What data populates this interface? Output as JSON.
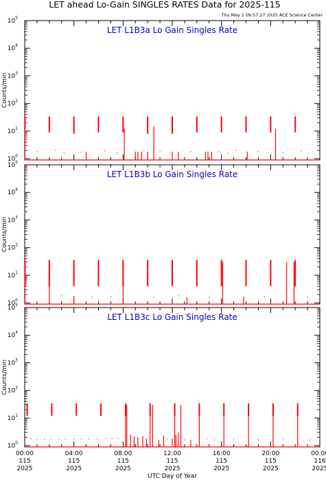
{
  "header": {
    "title": "LET ahead Lo-Gain SINGLES RATES Data for 2025-115",
    "timestamp": "Thu May  1 09:57:27 2025 ACE Science Center"
  },
  "colors": {
    "data": "#ff0000",
    "panel_title": "#0000cc",
    "axis": "#000000",
    "background": "#ffffff"
  },
  "chart_data": [
    {
      "type": "line",
      "title": "LET L1B3a Lo Gain Singles Rate",
      "ylabel": "Counts/min",
      "xlabel": "",
      "yscale": "log",
      "ylim": [
        0.9,
        100000
      ],
      "y_ticks": [
        1,
        10,
        100,
        1000,
        10000,
        100000
      ],
      "xlim": [
        0,
        24
      ],
      "x_unit": "hour of day 2025-115 (UTC)",
      "grid": false,
      "series": [
        {
          "baseline": 0.9,
          "pulses": [
            {
              "x": 0.02,
              "y_top": 34,
              "y_bot": 12
            },
            {
              "x": 2.0,
              "y_top": 34,
              "y_bot": 9
            },
            {
              "x": 4.0,
              "y_top": 34,
              "y_bot": 8
            },
            {
              "x": 6.0,
              "y_top": 34,
              "y_bot": 9
            },
            {
              "x": 8.0,
              "y_top": 34,
              "y_bot": 9
            },
            {
              "x": 10.0,
              "y_top": 34,
              "y_bot": 8
            },
            {
              "x": 12.0,
              "y_top": 34,
              "y_bot": 8
            },
            {
              "x": 14.0,
              "y_top": 34,
              "y_bot": 9
            },
            {
              "x": 16.0,
              "y_top": 34,
              "y_bot": 9
            },
            {
              "x": 18.0,
              "y_top": 34,
              "y_bot": 9
            },
            {
              "x": 20.0,
              "y_top": 34,
              "y_bot": 9
            },
            {
              "x": 22.0,
              "y_top": 34,
              "y_bot": 9
            }
          ],
          "spikes": [
            {
              "x": 0.02,
              "y": 30
            },
            {
              "x": 5.0,
              "y": 1.8
            },
            {
              "x": 8.1,
              "y": 12
            },
            {
              "x": 9.0,
              "y": 1.8
            },
            {
              "x": 9.2,
              "y": 1.8
            },
            {
              "x": 9.5,
              "y": 1.8
            },
            {
              "x": 10.0,
              "y": 1.8
            },
            {
              "x": 10.5,
              "y": 15
            },
            {
              "x": 12.0,
              "y": 1.8
            },
            {
              "x": 12.5,
              "y": 1.8
            },
            {
              "x": 14.7,
              "y": 1.8
            },
            {
              "x": 14.9,
              "y": 1.8
            },
            {
              "x": 15.2,
              "y": 1.8
            },
            {
              "x": 18.1,
              "y": 1.8
            },
            {
              "x": 20.4,
              "y": 12
            }
          ],
          "dots": [
            {
              "x": 1.0,
              "y": 1.8
            },
            {
              "x": 2.5,
              "y": 2.0
            },
            {
              "x": 3.2,
              "y": 1.6
            },
            {
              "x": 4.5,
              "y": 1.7
            },
            {
              "x": 6.5,
              "y": 1.9
            },
            {
              "x": 7.5,
              "y": 1.6
            },
            {
              "x": 9.7,
              "y": 2.0
            },
            {
              "x": 11.0,
              "y": 1.8
            },
            {
              "x": 11.8,
              "y": 1.6
            },
            {
              "x": 13.5,
              "y": 1.8
            },
            {
              "x": 15.8,
              "y": 1.8
            },
            {
              "x": 16.5,
              "y": 1.6
            },
            {
              "x": 17.2,
              "y": 2.0
            },
            {
              "x": 19.0,
              "y": 1.8
            },
            {
              "x": 21.0,
              "y": 1.7
            },
            {
              "x": 22.5,
              "y": 1.9
            }
          ]
        }
      ]
    },
    {
      "type": "line",
      "title": "LET L1B3b Lo Gain Singles Rate",
      "ylabel": "Counts/min",
      "xlabel": "",
      "yscale": "log",
      "ylim": [
        0.9,
        100000
      ],
      "y_ticks": [
        1,
        10,
        100,
        1000,
        10000,
        100000
      ],
      "xlim": [
        0,
        24
      ],
      "x_unit": "hour of day 2025-115 (UTC)",
      "grid": false,
      "series": [
        {
          "baseline": 0.9,
          "pulses": [
            {
              "x": 0.02,
              "y_top": 36,
              "y_bot": 4
            },
            {
              "x": 2.0,
              "y_top": 36,
              "y_bot": 4
            },
            {
              "x": 4.0,
              "y_top": 36,
              "y_bot": 4
            },
            {
              "x": 6.0,
              "y_top": 36,
              "y_bot": 4
            },
            {
              "x": 8.0,
              "y_top": 36,
              "y_bot": 4
            },
            {
              "x": 10.0,
              "y_top": 36,
              "y_bot": 4
            },
            {
              "x": 12.0,
              "y_top": 36,
              "y_bot": 4
            },
            {
              "x": 14.0,
              "y_top": 36,
              "y_bot": 4
            },
            {
              "x": 16.0,
              "y_top": 36,
              "y_bot": 4
            },
            {
              "x": 18.0,
              "y_top": 36,
              "y_bot": 4
            },
            {
              "x": 20.0,
              "y_top": 36,
              "y_bot": 4
            },
            {
              "x": 22.0,
              "y_top": 36,
              "y_bot": 4
            }
          ],
          "spikes": [
            {
              "x": 0.02,
              "y": 30
            },
            {
              "x": 2.0,
              "y": 30
            },
            {
              "x": 4.0,
              "y": 1.8
            },
            {
              "x": 8.0,
              "y": 30
            },
            {
              "x": 13.2,
              "y": 1.6
            },
            {
              "x": 16.1,
              "y": 30
            },
            {
              "x": 17.8,
              "y": 1.7
            },
            {
              "x": 21.3,
              "y": 30
            },
            {
              "x": 21.9,
              "y": 30
            }
          ],
          "dots": [
            {
              "x": 3.0,
              "y": 1.8
            },
            {
              "x": 5.5,
              "y": 1.6
            },
            {
              "x": 7.0,
              "y": 1.7
            },
            {
              "x": 10.5,
              "y": 1.6
            },
            {
              "x": 12.5,
              "y": 1.8
            },
            {
              "x": 15.0,
              "y": 1.6
            },
            {
              "x": 19.5,
              "y": 1.7
            },
            {
              "x": 23.0,
              "y": 1.6
            }
          ]
        }
      ]
    },
    {
      "type": "line",
      "title": "LET L1B3c Lo Gain Singles Rate",
      "ylabel": "Counts/min",
      "xlabel": "UTC Day of Year",
      "yscale": "log",
      "ylim": [
        0.9,
        100000
      ],
      "y_ticks": [
        1,
        10,
        100,
        1000,
        10000,
        100000
      ],
      "xlim": [
        0,
        24
      ],
      "x_unit": "hour of day 2025-115 (UTC)",
      "grid": false,
      "x_ticks": [
        {
          "x": 0,
          "label": [
            "00:00",
            "115",
            "2025"
          ]
        },
        {
          "x": 4,
          "label": [
            "04:00",
            "115",
            "2025"
          ]
        },
        {
          "x": 8,
          "label": [
            "08:00",
            "115",
            "2025"
          ]
        },
        {
          "x": 12,
          "label": [
            "12:00",
            "115",
            "2025"
          ]
        },
        {
          "x": 16,
          "label": [
            "16:00",
            "115",
            "2025"
          ]
        },
        {
          "x": 20,
          "label": [
            "20:00",
            "115",
            "2025"
          ]
        },
        {
          "x": 24,
          "label": [
            "00:00",
            "116",
            "2025"
          ]
        }
      ],
      "series": [
        {
          "baseline": 0.9,
          "pulses": [
            {
              "x": 0.2,
              "y_top": 34,
              "y_bot": 12
            },
            {
              "x": 2.2,
              "y_top": 34,
              "y_bot": 12
            },
            {
              "x": 4.2,
              "y_top": 34,
              "y_bot": 12
            },
            {
              "x": 6.2,
              "y_top": 34,
              "y_bot": 12
            },
            {
              "x": 8.2,
              "y_top": 34,
              "y_bot": 12
            },
            {
              "x": 10.2,
              "y_top": 34,
              "y_bot": 12
            },
            {
              "x": 12.2,
              "y_top": 34,
              "y_bot": 12
            },
            {
              "x": 14.2,
              "y_top": 34,
              "y_bot": 12
            },
            {
              "x": 16.2,
              "y_top": 34,
              "y_bot": 12
            },
            {
              "x": 18.2,
              "y_top": 34,
              "y_bot": 12
            },
            {
              "x": 20.2,
              "y_top": 34,
              "y_bot": 12
            },
            {
              "x": 22.2,
              "y_top": 34,
              "y_bot": 12
            }
          ],
          "spikes": [
            {
              "x": 8.2,
              "y": 30
            },
            {
              "x": 8.3,
              "y": 30
            },
            {
              "x": 8.6,
              "y": 2.5
            },
            {
              "x": 8.9,
              "y": 2.2
            },
            {
              "x": 9.2,
              "y": 2.0
            },
            {
              "x": 9.6,
              "y": 2.2
            },
            {
              "x": 9.9,
              "y": 1.8
            },
            {
              "x": 10.4,
              "y": 30
            },
            {
              "x": 10.9,
              "y": 1.6
            },
            {
              "x": 11.3,
              "y": 2.3
            },
            {
              "x": 12.0,
              "y": 1.8
            },
            {
              "x": 12.3,
              "y": 2.4
            },
            {
              "x": 12.5,
              "y": 3.0
            },
            {
              "x": 12.7,
              "y": 30
            },
            {
              "x": 13.5,
              "y": 1.6
            },
            {
              "x": 14.2,
              "y": 30
            },
            {
              "x": 16.2,
              "y": 30
            },
            {
              "x": 18.2,
              "y": 30
            },
            {
              "x": 20.2,
              "y": 30
            },
            {
              "x": 22.2,
              "y": 30
            },
            {
              "x": 10.2,
              "y": 30
            },
            {
              "x": 12.2,
              "y": 30
            }
          ],
          "dots": [
            {
              "x": 0.5,
              "y": 1.8
            },
            {
              "x": 1.0,
              "y": 1.8
            },
            {
              "x": 1.6,
              "y": 1.8
            },
            {
              "x": 2.1,
              "y": 1.8
            },
            {
              "x": 2.8,
              "y": 1.8
            },
            {
              "x": 3.3,
              "y": 1.8
            },
            {
              "x": 4.0,
              "y": 1.8
            },
            {
              "x": 4.6,
              "y": 1.8
            },
            {
              "x": 5.2,
              "y": 1.8
            },
            {
              "x": 5.9,
              "y": 1.8
            },
            {
              "x": 6.6,
              "y": 1.8
            },
            {
              "x": 7.1,
              "y": 1.8
            },
            {
              "x": 7.6,
              "y": 1.8
            },
            {
              "x": 11.6,
              "y": 1.8
            },
            {
              "x": 13.0,
              "y": 1.6
            },
            {
              "x": 14.8,
              "y": 1.8
            },
            {
              "x": 15.4,
              "y": 1.6
            },
            {
              "x": 17.0,
              "y": 1.8
            },
            {
              "x": 19.0,
              "y": 1.7
            },
            {
              "x": 21.0,
              "y": 1.8
            },
            {
              "x": 23.2,
              "y": 1.6
            }
          ]
        }
      ]
    }
  ]
}
